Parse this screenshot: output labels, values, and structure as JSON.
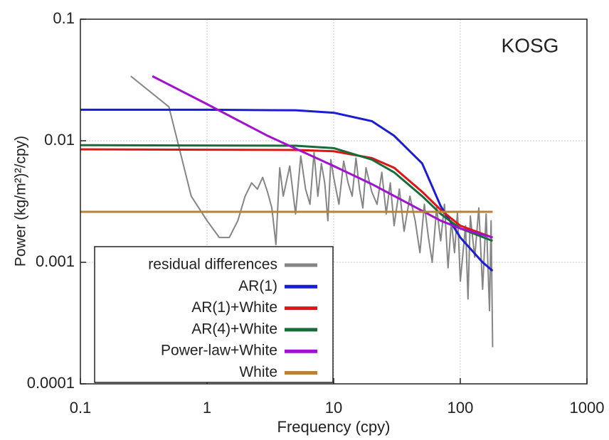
{
  "chart_data": {
    "type": "line",
    "x_label": "Frequency (cpy)",
    "y_label": "Power (kg/m²)²/cpy)",
    "annotation": "KOSG",
    "log_x": true,
    "log_y": true,
    "grid": true,
    "legend": "lower left",
    "xlim": [
      0.1,
      1000
    ],
    "ylim": [
      0.0001,
      0.1
    ],
    "xticks": [
      0.1,
      1,
      10,
      100,
      1000
    ],
    "yticks": [
      0.0001,
      0.001,
      0.01,
      0.1
    ],
    "series": [
      {
        "name": "residual differences",
        "color": "#858585",
        "x": [
          0.25,
          0.5,
          0.75,
          1.0,
          1.25,
          1.5,
          1.75,
          2.0,
          2.25,
          2.5,
          2.75,
          3.0,
          3.25,
          3.5,
          3.75,
          4,
          4.5,
          5,
          5.5,
          6,
          6.5,
          7,
          7.5,
          8,
          8.5,
          9,
          9.5,
          10,
          11,
          12,
          13,
          14,
          15,
          16,
          17,
          18,
          20,
          22,
          24,
          26,
          28,
          30,
          33,
          36,
          40,
          44,
          48,
          52,
          56,
          60,
          65,
          70,
          75,
          80,
          85,
          90,
          95,
          100,
          110,
          115,
          120,
          130,
          140,
          150,
          160,
          170,
          175,
          180
        ],
        "values": [
          0.034,
          0.019,
          0.0035,
          0.0022,
          0.0016,
          0.0016,
          0.0022,
          0.0035,
          0.0045,
          0.004,
          0.005,
          0.0038,
          0.0028,
          0.0014,
          0.006,
          0.0035,
          0.0062,
          0.0025,
          0.0075,
          0.004,
          0.003,
          0.008,
          0.0035,
          0.0065,
          0.0045,
          0.0022,
          0.007,
          0.005,
          0.003,
          0.0068,
          0.0045,
          0.0035,
          0.0072,
          0.004,
          0.0028,
          0.006,
          0.0038,
          0.003,
          0.0055,
          0.0025,
          0.0045,
          0.002,
          0.004,
          0.0018,
          0.0035,
          0.0022,
          0.0012,
          0.003,
          0.0016,
          0.001,
          0.0028,
          0.0015,
          0.003,
          0.0009,
          0.0022,
          0.0012,
          0.0026,
          0.0007,
          0.002,
          0.0005,
          0.0024,
          0.0011,
          0.0028,
          0.0006,
          0.0025,
          0.0004,
          0.0022,
          0.0002
        ]
      },
      {
        "name": "AR(1)",
        "color": "#1c1cd4",
        "x": [
          0.1,
          1,
          5,
          10,
          20,
          30,
          50,
          70,
          100,
          150,
          180
        ],
        "values": [
          0.018,
          0.018,
          0.0178,
          0.017,
          0.0145,
          0.011,
          0.0065,
          0.0029,
          0.0016,
          0.001,
          0.00085
        ]
      },
      {
        "name": "AR(1)+White",
        "color": "#e01414",
        "x": [
          0.1,
          5,
          10,
          20,
          30,
          50,
          70,
          100,
          180
        ],
        "values": [
          0.0085,
          0.0084,
          0.0082,
          0.0072,
          0.006,
          0.0038,
          0.0027,
          0.002,
          0.0016
        ]
      },
      {
        "name": "AR(4)+White",
        "color": "#1a6b3a",
        "x": [
          0.1,
          5,
          10,
          20,
          30,
          50,
          70,
          100,
          180
        ],
        "values": [
          0.0092,
          0.0091,
          0.0087,
          0.007,
          0.0055,
          0.0035,
          0.0025,
          0.0019,
          0.0015
        ]
      },
      {
        "name": "Power-law+White",
        "color": "#a012d2",
        "x": [
          0.37,
          1,
          3,
          10,
          20,
          40,
          70,
          100,
          180
        ],
        "values": [
          0.034,
          0.02,
          0.011,
          0.0062,
          0.0044,
          0.003,
          0.0022,
          0.0019,
          0.0016
        ]
      },
      {
        "name": "White",
        "color": "#b5833c",
        "x": [
          0.1,
          180
        ],
        "values": [
          0.0026,
          0.0026
        ]
      }
    ]
  }
}
